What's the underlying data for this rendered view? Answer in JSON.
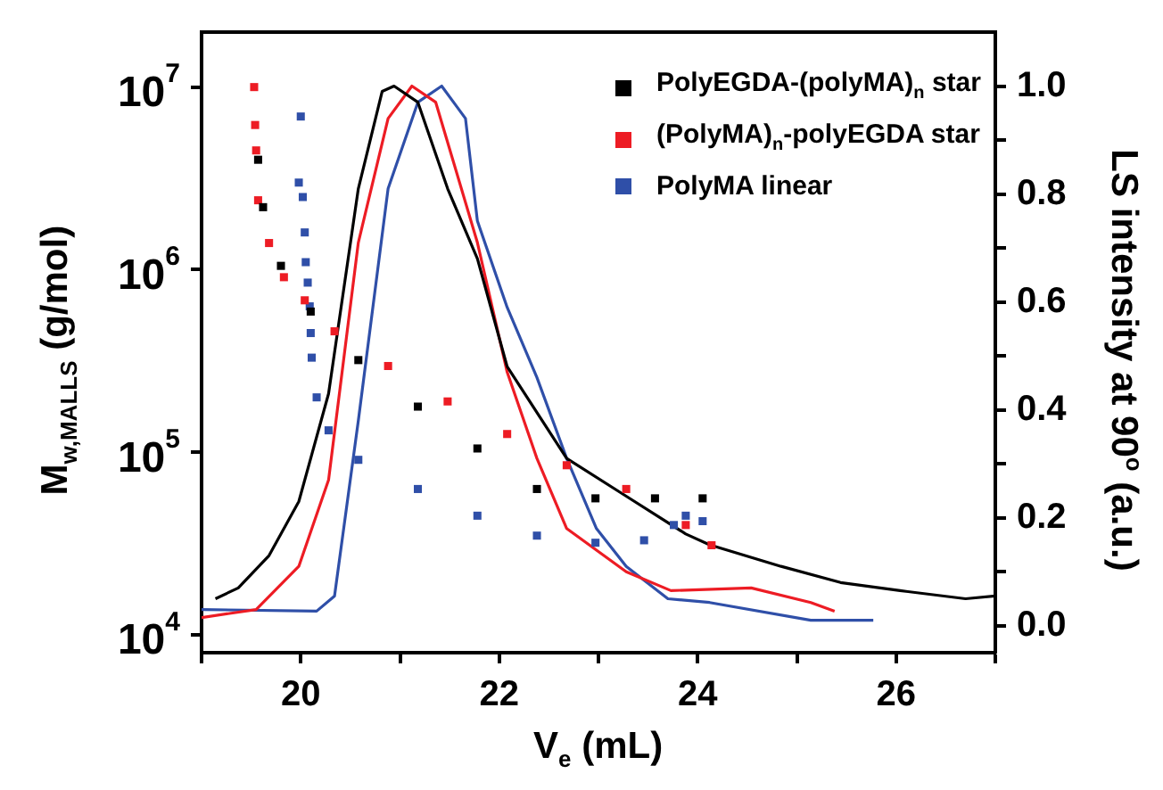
{
  "chart_data": {
    "type": "scatter",
    "xlabel": "V$_{e}$ (mL)",
    "ylabel": "M$_{w,MALLS}$ (g/mol)",
    "y2label": "LS intensity at 90$^{o}$ (a.u.)",
    "xlim": [
      19,
      27
    ],
    "xticks": [
      {
        "value": 19,
        "label": null
      },
      20,
      {
        "value": 21,
        "label": null
      },
      22,
      {
        "value": 23,
        "label": null
      },
      24,
      {
        "value": 25,
        "label": null
      },
      26,
      {
        "value": 27,
        "label": null
      }
    ],
    "ylim": [
      8000,
      20000000
    ],
    "yticks": [
      {
        "value": 10000,
        "label": "10$^{4}$"
      },
      {
        "value": 100000,
        "label": "10$^{5}$"
      },
      {
        "value": 1000000,
        "label": "10$^{6}$"
      },
      {
        "value": 10000000,
        "label": "10$^{7}$"
      }
    ],
    "y2lim": [
      -0.05,
      1.1
    ],
    "y2ticks": [
      {
        "value": 0,
        "label": "0.0"
      },
      {
        "value": 0.1,
        "label": null
      },
      0.2,
      {
        "value": 0.3,
        "label": null
      },
      0.4,
      {
        "value": 0.5,
        "label": null
      },
      0.6,
      {
        "value": 0.7,
        "label": null
      },
      0.8,
      {
        "value": 0.9,
        "label": null
      },
      {
        "value": 1,
        "label": "1.0"
      }
    ],
    "log": "y",
    "grid": false,
    "legend": "top right",
    "marker": "square",
    "series": [
      {
        "name": "PolyEGDA-(polyMA)$_{n}$ star",
        "color": "#000000",
        "x": [
          19.57,
          19.62,
          19.8,
          20.1,
          20.58,
          21.18,
          21.78,
          22.38,
          22.97,
          23.57,
          24.05
        ],
        "values": [
          4000000,
          2200000,
          1050000,
          590000,
          320000,
          178000,
          105000,
          63000,
          56000,
          56000,
          56000
        ]
      },
      {
        "name": "(PolyMA)$_{n}$-polyEGDA star",
        "color": "#ed1c24",
        "x": [
          19.53,
          19.54,
          19.55,
          19.57,
          19.68,
          19.83,
          20.04,
          20.34,
          20.88,
          21.48,
          22.08,
          22.68,
          23.28,
          23.88,
          24.14
        ],
        "values": [
          10000000,
          6200000,
          4500000,
          2400000,
          1400000,
          910000,
          680000,
          460000,
          297000,
          190000,
          126000,
          85000,
          63000,
          40000,
          31000
        ]
      },
      {
        "name": "PolyMA linear",
        "color": "#2f4fa8",
        "x": [
          20.0,
          19.98,
          20.02,
          20.04,
          20.05,
          20.07,
          20.09,
          20.1,
          20.11,
          20.16,
          20.28,
          20.58,
          21.18,
          21.78,
          22.38,
          22.97,
          23.46,
          23.76,
          23.88,
          24.05
        ],
        "values": [
          6900000,
          3000000,
          2500000,
          1600000,
          1100000,
          850000,
          630000,
          450000,
          330000,
          200000,
          132000,
          91000,
          63000,
          45000,
          35000,
          32000,
          33000,
          40000,
          45000,
          42000
        ]
      },
      {
        "type": "line",
        "axis": "y2",
        "marker": "none",
        "color": "#000000",
        "x": [
          19.14,
          19.37,
          19.68,
          19.98,
          20.28,
          20.58,
          20.82,
          20.94,
          21.18,
          21.48,
          21.78,
          22.08,
          22.68,
          23.28,
          23.88,
          24.12,
          24.84,
          25.44,
          26.04,
          26.7,
          27.0
        ],
        "values": [
          0.05,
          0.07,
          0.13,
          0.23,
          0.43,
          0.81,
          0.99,
          1.0,
          0.97,
          0.81,
          0.68,
          0.48,
          0.31,
          0.24,
          0.17,
          0.15,
          0.11,
          0.08,
          0.065,
          0.05,
          0.055
        ]
      },
      {
        "type": "line",
        "axis": "y2",
        "marker": "none",
        "color": "#ed1c24",
        "x": [
          19.0,
          19.55,
          19.98,
          20.28,
          20.58,
          20.88,
          21.12,
          21.36,
          21.78,
          22.08,
          22.38,
          22.68,
          23.28,
          23.73,
          24.54,
          25.14,
          25.38
        ],
        "values": [
          0.015,
          0.03,
          0.11,
          0.27,
          0.71,
          0.94,
          1.0,
          0.97,
          0.71,
          0.47,
          0.31,
          0.18,
          0.1,
          0.065,
          0.07,
          0.043,
          0.027
        ]
      },
      {
        "type": "line",
        "axis": "y2",
        "marker": "none",
        "color": "#2f4fa8",
        "x": [
          19.0,
          20.16,
          20.34,
          20.58,
          20.88,
          21.18,
          21.42,
          21.66,
          21.78,
          22.08,
          22.38,
          22.68,
          22.98,
          23.28,
          23.7,
          24.12,
          25.14,
          25.77
        ],
        "values": [
          0.03,
          0.027,
          0.055,
          0.38,
          0.81,
          0.97,
          1.0,
          0.94,
          0.75,
          0.59,
          0.46,
          0.31,
          0.18,
          0.11,
          0.05,
          0.043,
          0.01,
          0.01
        ]
      }
    ]
  }
}
